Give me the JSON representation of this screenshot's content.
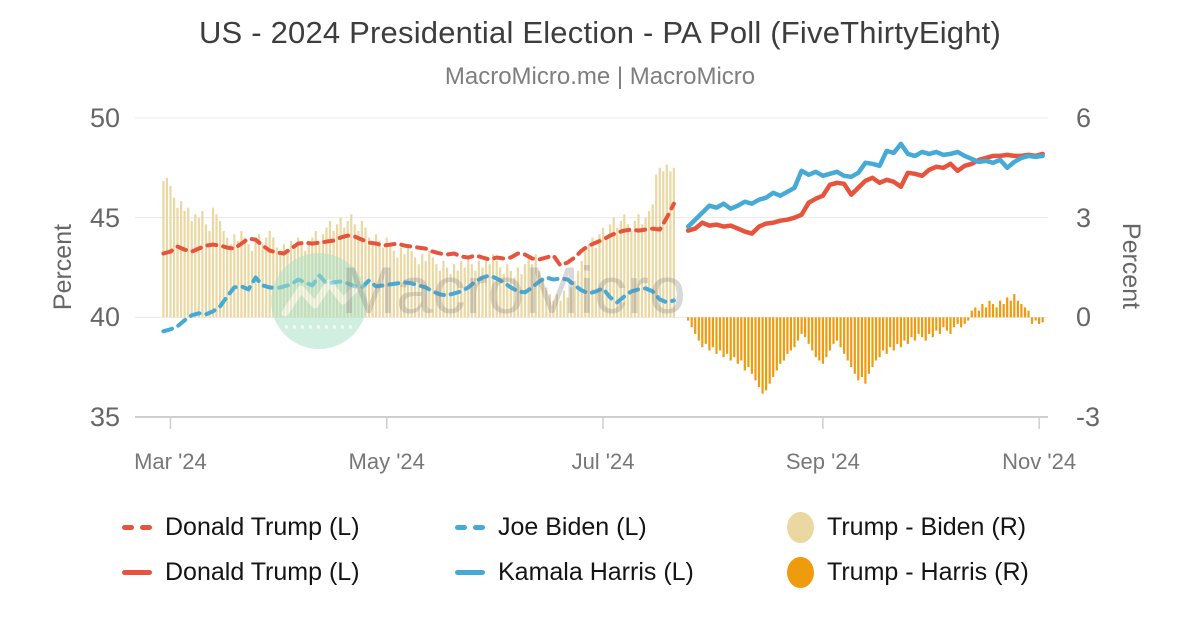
{
  "header": {
    "title": "US - 2024 Presidential Election - PA Poll (FiveThirtyEight)",
    "subtitle": "MacroMicro.me | MacroMicro"
  },
  "watermark": {
    "text": "MacroMicro",
    "logo_icon": "macromicro-m-logo",
    "circle_color": "#a9e2c6"
  },
  "legend": {
    "rows": [
      [
        {
          "label": "Donald Trump (L)",
          "marker": "dashed-line",
          "color": "#e7543d"
        },
        {
          "label": "Joe Biden (L)",
          "marker": "dashed-line",
          "color": "#46aad7"
        },
        {
          "label": "Trump - Biden (R)",
          "marker": "circle",
          "color": "#ead7a2"
        }
      ],
      [
        {
          "label": "Donald Trump (L)",
          "marker": "solid-line",
          "color": "#e7543d"
        },
        {
          "label": "Kamala Harris (L)",
          "marker": "solid-line",
          "color": "#46aad7"
        },
        {
          "label": "Trump - Harris (R)",
          "marker": "circle",
          "color": "#ef9b0e"
        }
      ]
    ]
  },
  "chart_data": {
    "type": "mixed",
    "title": "US - 2024 Presidential Election - PA Poll (FiveThirtyEight)",
    "x_unit": "days since 2024-03-01",
    "x_range": [
      -10,
      247.5
    ],
    "x_ticks": [
      {
        "day": 0,
        "label": "Mar '24"
      },
      {
        "day": 61,
        "label": "May '24"
      },
      {
        "day": 122,
        "label": "Jul '24"
      },
      {
        "day": 184,
        "label": "Sep '24"
      },
      {
        "day": 245,
        "label": "Nov '24"
      }
    ],
    "y_left": {
      "label": "Percent",
      "min": 35,
      "max": 50,
      "ticks": [
        50,
        45,
        40,
        35
      ]
    },
    "y_right": {
      "label": "Percent",
      "min": -3,
      "max": 6,
      "ticks": [
        6,
        3,
        0,
        -3
      ]
    },
    "grid": "horizontal",
    "legend_position": "bottom",
    "series": [
      {
        "name": "Donald Trump (L)",
        "type": "line",
        "style": "dashed",
        "axis": "left",
        "color": "#e7543d",
        "start_day": -2,
        "step": 2,
        "values": [
          43.2,
          43.3,
          43.55,
          43.4,
          43.3,
          43.45,
          43.6,
          43.65,
          43.6,
          43.5,
          43.45,
          43.7,
          43.95,
          43.9,
          43.6,
          43.35,
          43.25,
          43.2,
          43.45,
          43.7,
          43.75,
          43.7,
          43.75,
          43.8,
          43.85,
          44.0,
          44.1,
          44.05,
          43.9,
          43.75,
          43.7,
          43.6,
          43.65,
          43.7,
          43.6,
          43.55,
          43.5,
          43.45,
          43.3,
          43.2,
          43.15,
          43.2,
          43.05,
          43.0,
          43.1,
          43.0,
          42.9,
          43.0,
          42.95,
          43.0,
          43.2,
          43.15,
          42.95,
          42.9,
          43.0,
          43.1,
          42.6,
          42.75,
          43.0,
          43.35,
          43.6,
          43.75,
          43.9,
          44.1,
          44.25,
          44.35,
          44.4,
          44.35,
          44.4,
          44.45,
          44.4,
          45.0,
          45.7
        ]
      },
      {
        "name": "Joe Biden (L)",
        "type": "line",
        "style": "dashed",
        "axis": "left",
        "color": "#46aad7",
        "start_day": -2,
        "step": 2,
        "values": [
          39.3,
          39.4,
          39.55,
          39.85,
          40.1,
          40.2,
          40.15,
          40.3,
          40.55,
          41.05,
          41.5,
          41.55,
          41.4,
          42.0,
          41.6,
          41.5,
          41.45,
          41.55,
          41.65,
          41.9,
          41.75,
          41.6,
          42.1,
          41.7,
          41.75,
          41.8,
          41.7,
          41.55,
          41.5,
          41.85,
          41.55,
          41.6,
          41.65,
          41.7,
          41.75,
          41.7,
          41.6,
          41.5,
          41.3,
          41.15,
          41.1,
          41.2,
          41.3,
          41.5,
          41.8,
          42.0,
          42.1,
          41.95,
          41.75,
          41.5,
          41.3,
          41.25,
          41.5,
          41.8,
          42.0,
          41.9,
          41.95,
          41.9,
          41.6,
          41.35,
          41.2,
          41.3,
          41.45,
          41.0,
          40.75,
          41.05,
          41.3,
          41.4,
          41.45,
          41.3,
          40.9,
          40.75,
          40.85
        ]
      },
      {
        "name": "Donald Trump (L)",
        "type": "line",
        "style": "solid",
        "axis": "left",
        "color": "#e7543d",
        "start_day": 146,
        "step": 2,
        "values": [
          44.35,
          44.45,
          44.75,
          44.6,
          44.65,
          44.55,
          44.6,
          44.45,
          44.3,
          44.2,
          44.55,
          44.7,
          44.75,
          44.85,
          44.9,
          45.0,
          45.15,
          45.75,
          45.95,
          46.1,
          46.65,
          46.75,
          46.7,
          46.15,
          46.5,
          46.85,
          47.0,
          46.75,
          46.9,
          46.8,
          46.55,
          47.25,
          47.2,
          47.1,
          47.4,
          47.55,
          47.5,
          47.7,
          47.35,
          47.6,
          47.7,
          47.9,
          48.0,
          48.1,
          48.1,
          48.15,
          48.1,
          48.1,
          48.15,
          48.1,
          48.2
        ]
      },
      {
        "name": "Kamala Harris (L)",
        "type": "line",
        "style": "solid",
        "axis": "left",
        "color": "#46aad7",
        "start_day": 146,
        "step": 2,
        "values": [
          44.55,
          44.9,
          45.25,
          45.6,
          45.5,
          45.7,
          45.45,
          45.6,
          45.8,
          45.7,
          45.9,
          46.0,
          46.25,
          46.1,
          46.3,
          46.5,
          47.35,
          47.15,
          47.3,
          47.1,
          47.2,
          47.3,
          47.1,
          47.05,
          47.25,
          47.75,
          47.7,
          47.6,
          48.35,
          48.25,
          48.7,
          48.2,
          48.1,
          48.3,
          48.2,
          48.3,
          48.15,
          48.2,
          48.3,
          48.1,
          47.95,
          47.8,
          47.85,
          47.75,
          47.9,
          47.5,
          47.8,
          48.0,
          48.1,
          48.05,
          48.1
        ]
      },
      {
        "name": "Trump - Biden (R)",
        "type": "bar",
        "axis": "right",
        "color": "#ead7a2",
        "start_day": -2,
        "step": 1,
        "values": [
          4.1,
          4.2,
          3.95,
          3.6,
          3.3,
          3.5,
          3.2,
          3.3,
          2.9,
          3.1,
          3.0,
          3.2,
          2.8,
          2.6,
          3.3,
          3.1,
          2.9,
          2.6,
          2.4,
          2.2,
          2.5,
          2.3,
          2.6,
          2.4,
          2.2,
          2.0,
          2.3,
          2.5,
          2.2,
          2.4,
          2.6,
          2.4,
          2.1,
          1.9,
          2.2,
          2.0,
          2.3,
          2.1,
          2.4,
          2.2,
          2.0,
          2.2,
          2.4,
          2.6,
          2.3,
          2.5,
          2.7,
          2.9,
          2.6,
          2.8,
          3.0,
          2.7,
          2.9,
          3.1,
          2.8,
          2.6,
          2.9,
          2.7,
          2.4,
          2.2,
          2.5,
          2.3,
          2.1,
          2.4,
          2.2,
          2.0,
          1.8,
          2.1,
          1.9,
          2.2,
          2.0,
          1.8,
          1.6,
          1.9,
          1.7,
          2.0,
          1.8,
          1.6,
          1.4,
          1.7,
          1.5,
          1.3,
          1.6,
          1.4,
          1.7,
          1.5,
          1.8,
          1.6,
          1.4,
          1.7,
          1.5,
          1.8,
          1.6,
          1.9,
          1.7,
          1.5,
          1.3,
          1.6,
          1.4,
          1.2,
          1.5,
          1.3,
          1.6,
          1.8,
          1.6,
          1.9,
          1.4,
          1.1,
          0.9,
          0.7,
          0.5,
          0.7,
          0.5,
          0.8,
          0.6,
          0.9,
          1.1,
          1.4,
          1.7,
          2.0,
          2.2,
          2.4,
          2.1,
          2.5,
          2.7,
          2.4,
          2.8,
          3.0,
          2.7,
          2.9,
          3.1,
          2.8,
          2.6,
          2.9,
          3.1,
          2.8,
          3.0,
          3.2,
          3.4,
          4.3,
          4.5,
          4.4,
          4.6,
          4.4,
          4.5
        ]
      },
      {
        "name": "Trump - Harris (R)",
        "type": "bar",
        "axis": "right",
        "color": "#ef9b0e",
        "start_day": 146,
        "step": 1,
        "values": [
          -0.1,
          -0.3,
          -0.5,
          -0.7,
          -0.9,
          -0.8,
          -1.0,
          -0.9,
          -1.1,
          -1.0,
          -1.2,
          -1.1,
          -1.3,
          -1.2,
          -1.4,
          -1.3,
          -1.6,
          -1.5,
          -1.7,
          -1.9,
          -2.1,
          -2.3,
          -2.2,
          -2.0,
          -1.8,
          -1.6,
          -1.4,
          -1.3,
          -1.1,
          -1.0,
          -0.9,
          -0.7,
          -0.5,
          -0.6,
          -0.8,
          -1.0,
          -1.2,
          -1.3,
          -1.4,
          -1.2,
          -1.0,
          -0.8,
          -0.7,
          -0.9,
          -1.1,
          -1.3,
          -1.5,
          -1.7,
          -1.9,
          -1.8,
          -2.0,
          -1.7,
          -1.5,
          -1.3,
          -1.2,
          -1.0,
          -1.1,
          -0.9,
          -1.0,
          -0.8,
          -0.9,
          -0.7,
          -0.8,
          -0.6,
          -0.7,
          -0.5,
          -0.6,
          -0.7,
          -0.5,
          -0.6,
          -0.4,
          -0.5,
          -0.3,
          -0.4,
          -0.5,
          -0.3,
          -0.2,
          -0.3,
          -0.2,
          -0.1,
          0.2,
          0.3,
          0.2,
          0.4,
          0.3,
          0.5,
          0.4,
          0.3,
          0.5,
          0.4,
          0.6,
          0.5,
          0.7,
          0.5,
          0.4,
          0.3,
          0.2,
          -0.2,
          -0.1,
          -0.2,
          -0.15
        ]
      }
    ]
  }
}
